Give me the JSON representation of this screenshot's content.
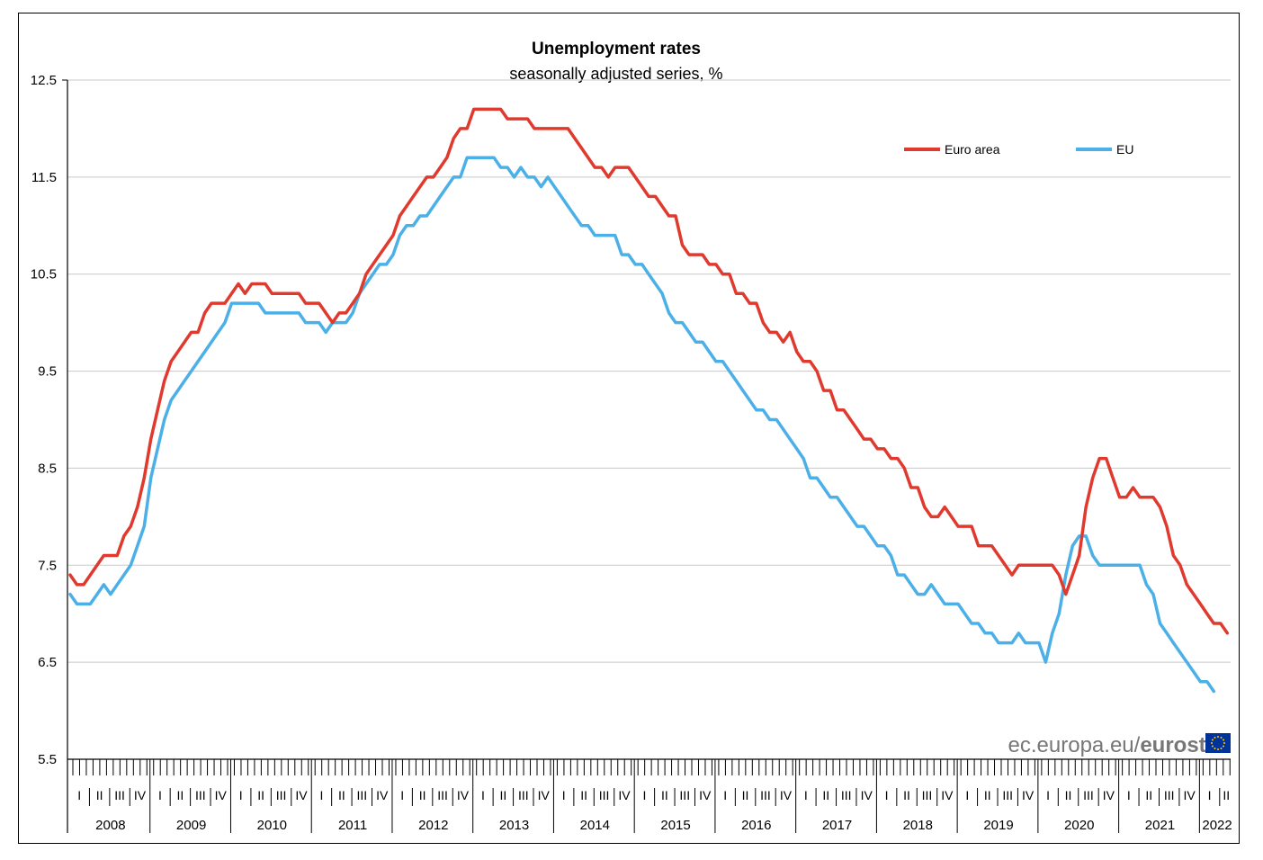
{
  "chart_data": {
    "type": "line",
    "title": "Unemployment rates",
    "subtitle": "seasonally adjusted series, %",
    "yticks": [
      "12.5",
      "11.5",
      "10.5",
      "9.5",
      "8.5",
      "7.5",
      "6.5",
      "5.5"
    ],
    "ylim": [
      5.5,
      12.5
    ],
    "grid": true,
    "legend_position": "top-right",
    "quarter_labels": [
      "I",
      "II",
      "III",
      "IV"
    ],
    "years": [
      "2008",
      "2009",
      "2010",
      "2011",
      "2012",
      "2013",
      "2014",
      "2015",
      "2016",
      "2017",
      "2018",
      "2019",
      "2020",
      "2021",
      "2022"
    ],
    "x_start": "2008-01",
    "x_end": "2022-03",
    "series": [
      {
        "name": "Euro area",
        "color": "#e03a2f",
        "values": [
          7.4,
          7.3,
          7.3,
          7.4,
          7.5,
          7.6,
          7.6,
          7.6,
          7.8,
          7.9,
          8.1,
          8.4,
          8.8,
          9.1,
          9.4,
          9.6,
          9.7,
          9.8,
          9.9,
          9.9,
          10.1,
          10.2,
          10.2,
          10.2,
          10.3,
          10.4,
          10.3,
          10.4,
          10.4,
          10.4,
          10.3,
          10.3,
          10.3,
          10.3,
          10.3,
          10.2,
          10.2,
          10.2,
          10.1,
          10.0,
          10.1,
          10.1,
          10.2,
          10.3,
          10.5,
          10.6,
          10.7,
          10.8,
          10.9,
          11.1,
          11.2,
          11.3,
          11.4,
          11.5,
          11.5,
          11.6,
          11.7,
          11.9,
          12.0,
          12.0,
          12.2,
          12.2,
          12.2,
          12.2,
          12.2,
          12.1,
          12.1,
          12.1,
          12.1,
          12.0,
          12.0,
          12.0,
          12.0,
          12.0,
          12.0,
          11.9,
          11.8,
          11.7,
          11.6,
          11.6,
          11.5,
          11.6,
          11.6,
          11.6,
          11.5,
          11.4,
          11.3,
          11.3,
          11.2,
          11.1,
          11.1,
          10.8,
          10.7,
          10.7,
          10.7,
          10.6,
          10.6,
          10.5,
          10.5,
          10.3,
          10.3,
          10.2,
          10.2,
          10.0,
          9.9,
          9.9,
          9.8,
          9.9,
          9.7,
          9.6,
          9.6,
          9.5,
          9.3,
          9.3,
          9.1,
          9.1,
          9.0,
          8.9,
          8.8,
          8.8,
          8.7,
          8.7,
          8.6,
          8.6,
          8.5,
          8.3,
          8.3,
          8.1,
          8.0,
          8.0,
          8.1,
          8.0,
          7.9,
          7.9,
          7.9,
          7.7,
          7.7,
          7.7,
          7.6,
          7.5,
          7.4,
          7.5,
          7.5,
          7.5,
          7.5,
          7.5,
          7.5,
          7.4,
          7.2,
          7.4,
          7.6,
          8.1,
          8.4,
          8.6,
          8.6,
          8.4,
          8.2,
          8.2,
          8.3,
          8.2,
          8.2,
          8.2,
          8.1,
          7.9,
          7.6,
          7.5,
          7.3,
          7.2,
          7.1,
          7.0,
          6.9,
          6.9,
          6.8
        ]
      },
      {
        "name": "EU",
        "color": "#4bb0e8",
        "values": [
          7.2,
          7.1,
          7.1,
          7.1,
          7.2,
          7.3,
          7.2,
          7.3,
          7.4,
          7.5,
          7.7,
          7.9,
          8.4,
          8.7,
          9.0,
          9.2,
          9.3,
          9.4,
          9.5,
          9.6,
          9.7,
          9.8,
          9.9,
          10.0,
          10.2,
          10.2,
          10.2,
          10.2,
          10.2,
          10.1,
          10.1,
          10.1,
          10.1,
          10.1,
          10.1,
          10.0,
          10.0,
          10.0,
          9.9,
          10.0,
          10.0,
          10.0,
          10.1,
          10.3,
          10.4,
          10.5,
          10.6,
          10.6,
          10.7,
          10.9,
          11.0,
          11.0,
          11.1,
          11.1,
          11.2,
          11.3,
          11.4,
          11.5,
          11.5,
          11.7,
          11.7,
          11.7,
          11.7,
          11.7,
          11.6,
          11.6,
          11.5,
          11.6,
          11.5,
          11.5,
          11.4,
          11.5,
          11.4,
          11.3,
          11.2,
          11.1,
          11.0,
          11.0,
          10.9,
          10.9,
          10.9,
          10.9,
          10.7,
          10.7,
          10.6,
          10.6,
          10.5,
          10.4,
          10.3,
          10.1,
          10.0,
          10.0,
          9.9,
          9.8,
          9.8,
          9.7,
          9.6,
          9.6,
          9.5,
          9.4,
          9.3,
          9.2,
          9.1,
          9.1,
          9.0,
          9.0,
          8.9,
          8.8,
          8.7,
          8.6,
          8.4,
          8.4,
          8.3,
          8.2,
          8.2,
          8.1,
          8.0,
          7.9,
          7.9,
          7.8,
          7.7,
          7.7,
          7.6,
          7.4,
          7.4,
          7.3,
          7.2,
          7.2,
          7.3,
          7.2,
          7.1,
          7.1,
          7.1,
          7.0,
          6.9,
          6.9,
          6.8,
          6.8,
          6.7,
          6.7,
          6.7,
          6.8,
          6.7,
          6.7,
          6.7,
          6.5,
          6.8,
          7.0,
          7.4,
          7.7,
          7.8,
          7.8,
          7.6,
          7.5,
          7.5,
          7.5,
          7.5,
          7.5,
          7.5,
          7.5,
          7.3,
          7.2,
          6.9,
          6.8,
          6.7,
          6.6,
          6.5,
          6.4,
          6.3,
          6.3,
          6.2
        ]
      }
    ]
  },
  "source": {
    "domain": "ec.europa.eu/",
    "brand": "eurostat"
  },
  "colors": {
    "euro_area": "#e03a2f",
    "eu": "#4bb0e8",
    "grid": "#c8c8c8",
    "flag_blue": "#003399",
    "flag_star": "#ffcc00"
  }
}
